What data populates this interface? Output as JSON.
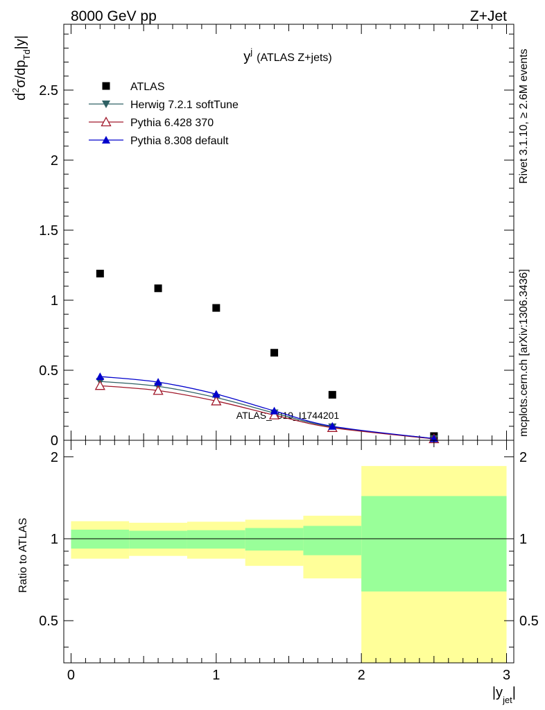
{
  "header": {
    "left": "8000 GeV pp",
    "right": "Z+Jet"
  },
  "side_text": {
    "rivet": "Rivet 3.1.10, ≥ 2.6M events",
    "mcplots": "mcplots.cern.ch [arXiv:1306.3436]"
  },
  "watermark": "ATLAS_2019_I1744201",
  "chart_data": [
    {
      "type": "scatter",
      "title": "y",
      "title_sup": "j",
      "title_suffix": "(ATLAS Z+jets)",
      "ylabel_parts": {
        "d": "d",
        "sup": "2",
        "mid": "σ/dp",
        "sub": "Td",
        "end": "|y|"
      },
      "xlim": [
        -0.05,
        3.05
      ],
      "ylim": [
        0,
        2.97
      ],
      "yticks": [
        0,
        0.5,
        1,
        1.5,
        2,
        2.5
      ],
      "ytick_labels": [
        "0",
        "0.5",
        "1",
        "1.5",
        "2",
        "2.5"
      ],
      "legend": "top-left",
      "series": [
        {
          "name": "ATLAS",
          "marker": "square",
          "color": "#000000",
          "x": [
            0.2,
            0.6,
            1.0,
            1.4,
            1.8,
            2.5
          ],
          "y": [
            1.19,
            1.085,
            0.945,
            0.625,
            0.325,
            0.03
          ]
        },
        {
          "name": "Herwig 7.2.1 softTune",
          "marker": "triangle-down",
          "color": "#2e6063",
          "x": [
            0.2,
            0.6,
            1.0,
            1.4,
            1.8,
            2.5
          ],
          "y": [
            0.42,
            0.385,
            0.305,
            0.195,
            0.095,
            0.012
          ]
        },
        {
          "name": "Pythia 6.428 370",
          "marker": "triangle-up-open",
          "color": "#a0182a",
          "x": [
            0.2,
            0.6,
            1.0,
            1.4,
            1.8,
            2.5
          ],
          "y": [
            0.39,
            0.355,
            0.28,
            0.18,
            0.09,
            0.01
          ]
        },
        {
          "name": "Pythia 8.308 default",
          "marker": "triangle-up",
          "color": "#0000cc",
          "x": [
            0.2,
            0.6,
            1.0,
            1.4,
            1.8,
            2.5
          ],
          "y": [
            0.455,
            0.415,
            0.33,
            0.21,
            0.1,
            0.012
          ]
        }
      ]
    },
    {
      "type": "area",
      "ylabel": "Ratio to ATLAS",
      "xlabel": "|y",
      "xlabel_sub": "jet",
      "xlabel_end": "|",
      "xlim": [
        -0.05,
        3.05
      ],
      "ylim": [
        0.35,
        2.3
      ],
      "xticks": [
        0,
        1,
        2,
        3
      ],
      "xtick_labels": [
        "0",
        "1",
        "2",
        "3"
      ],
      "yticks": [
        0.5,
        1,
        2
      ],
      "ytick_labels": [
        "0.5",
        "1",
        "2"
      ],
      "bins": [
        [
          0,
          0.4
        ],
        [
          0.4,
          0.8
        ],
        [
          0.8,
          1.2
        ],
        [
          1.2,
          1.6
        ],
        [
          1.6,
          2.0
        ],
        [
          2.0,
          3.0
        ]
      ],
      "total_band": [
        [
          0.845,
          1.16
        ],
        [
          0.865,
          1.145
        ],
        [
          0.845,
          1.155
        ],
        [
          0.795,
          1.175
        ],
        [
          0.715,
          1.215
        ],
        [
          0.35,
          1.85
        ]
      ],
      "stat_band": [
        [
          0.92,
          1.08
        ],
        [
          0.92,
          1.07
        ],
        [
          0.92,
          1.075
        ],
        [
          0.905,
          1.095
        ],
        [
          0.87,
          1.115
        ],
        [
          0.64,
          1.435
        ]
      ],
      "reference": 1,
      "colors": {
        "total": "#ffff99",
        "stat": "#99ff99"
      }
    }
  ]
}
